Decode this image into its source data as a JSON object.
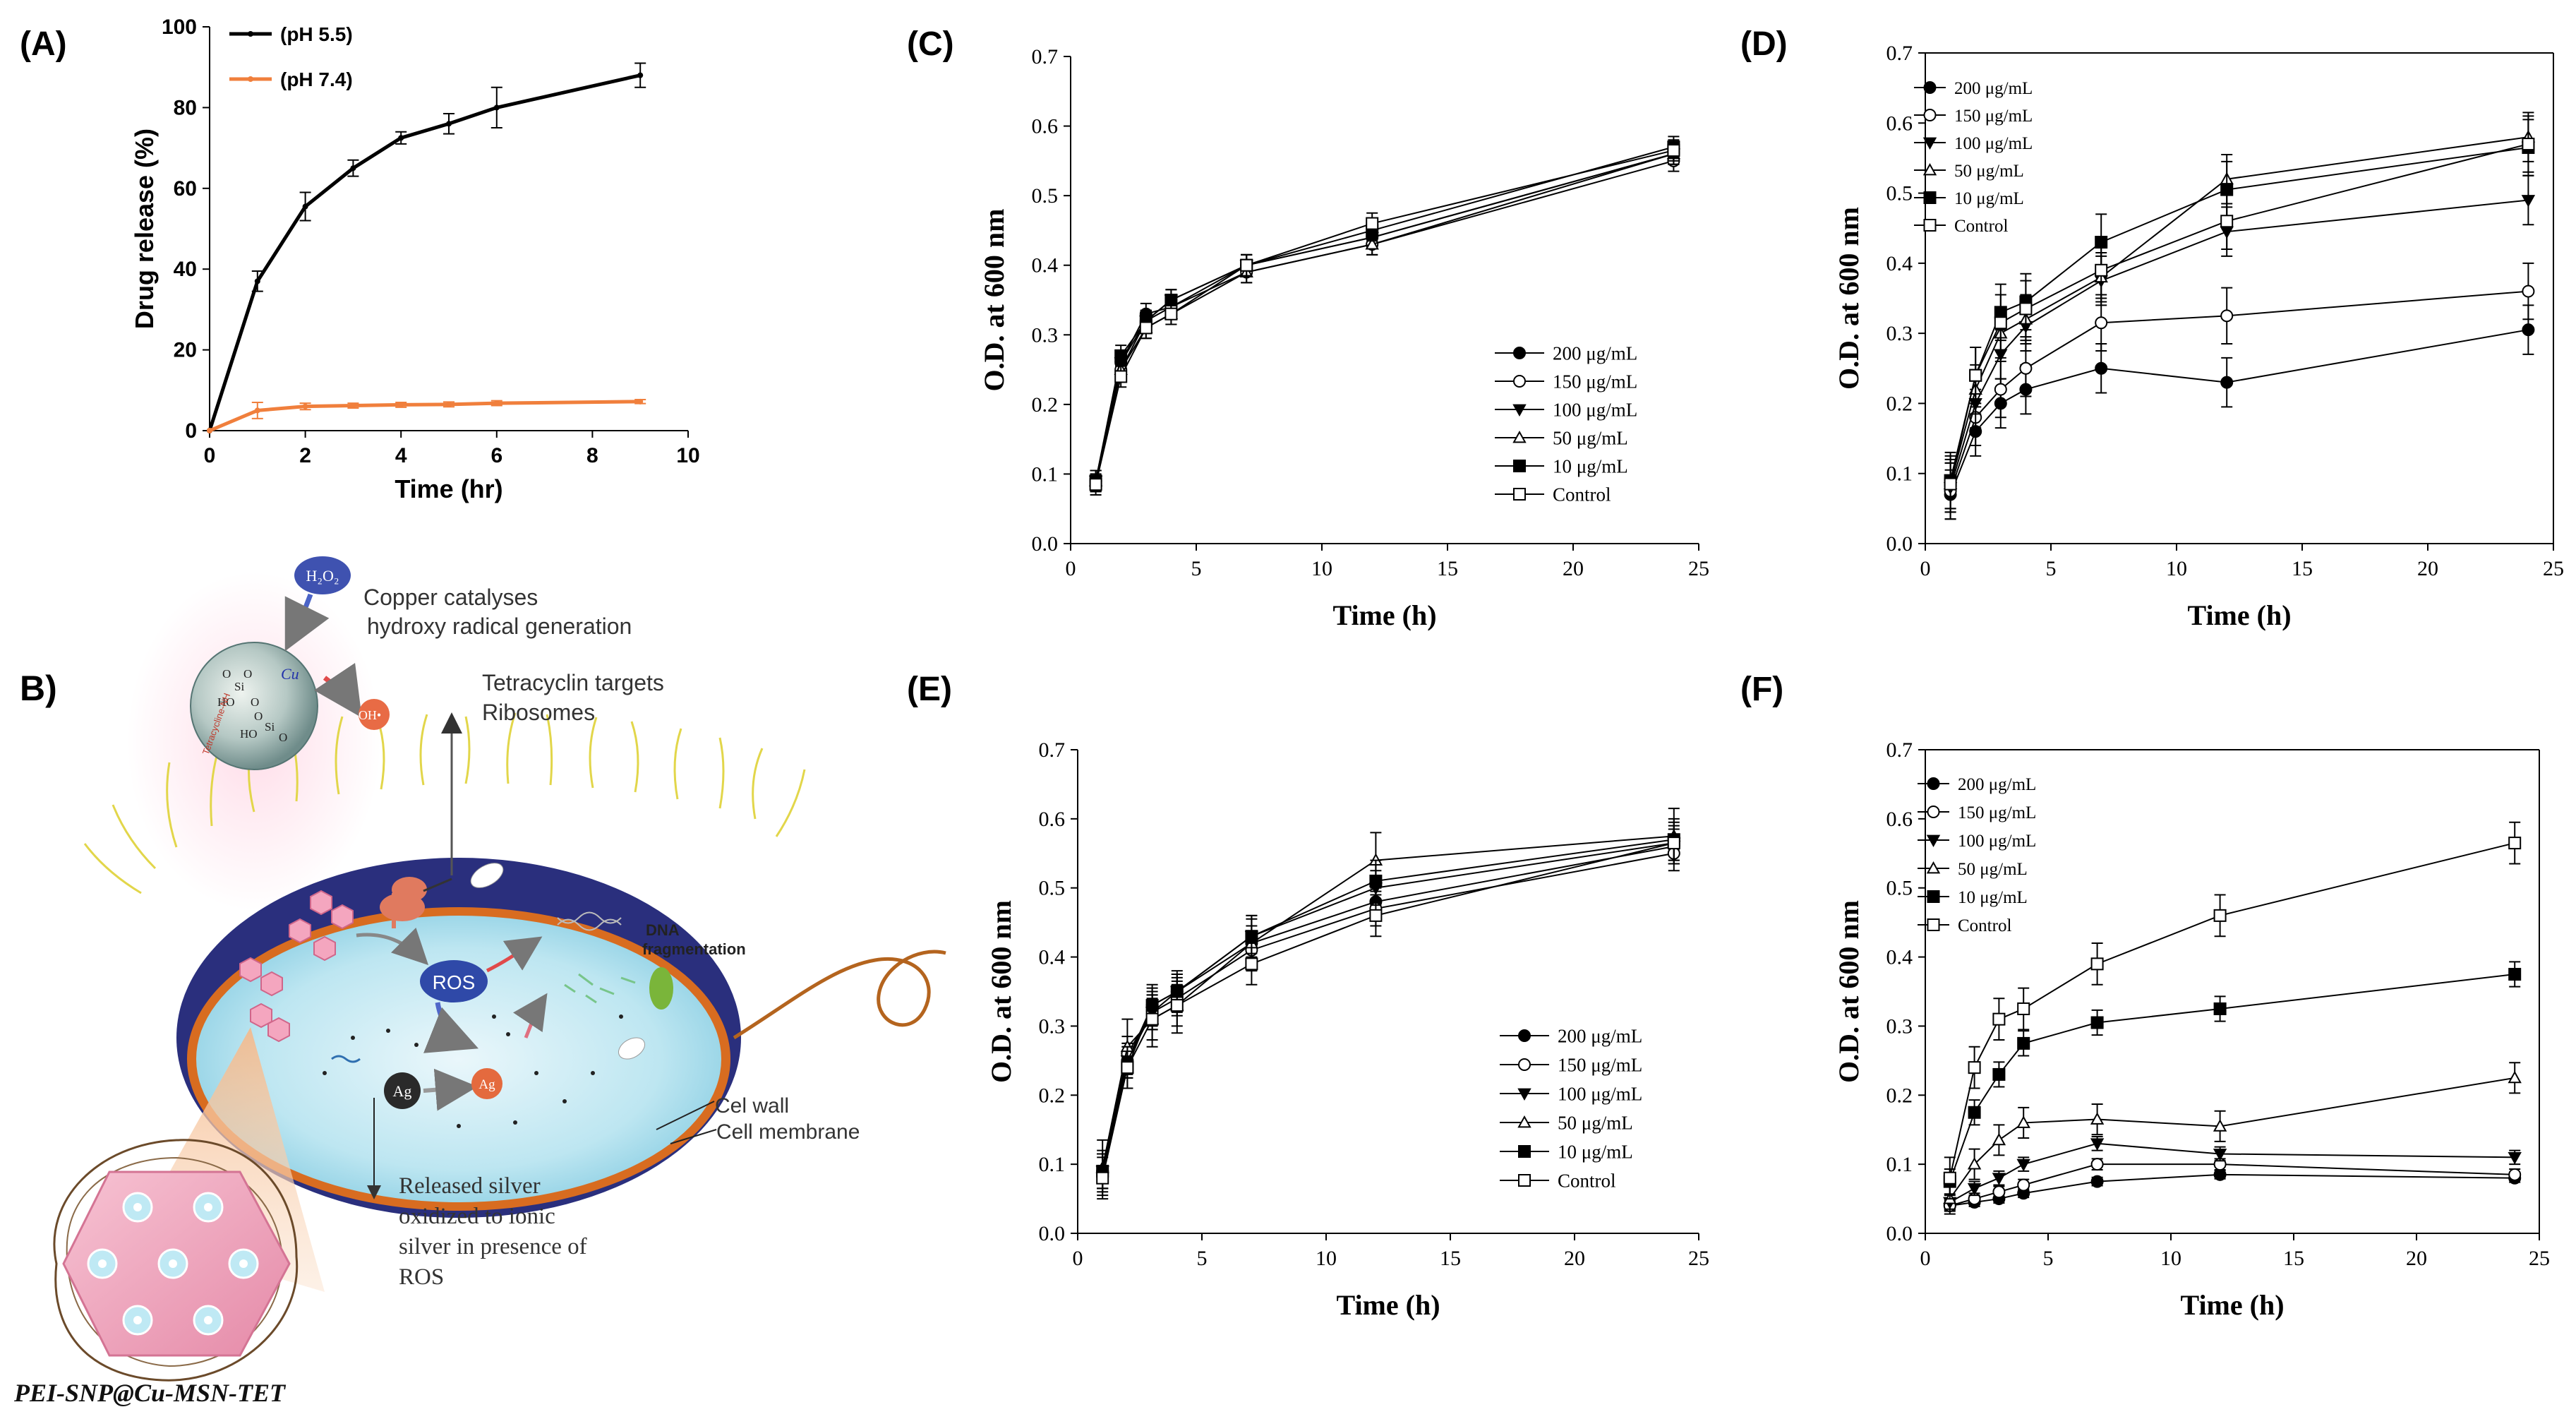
{
  "figure": {
    "footer_caption": "PEI-SNP@Cu-MSN-TET"
  },
  "panel_a": {
    "label": "(A)",
    "chart_data": {
      "type": "line",
      "title": "",
      "xlabel": "Time (hr)",
      "ylabel": "Drug release (%)",
      "xlim": [
        0,
        10
      ],
      "ylim": [
        0,
        100
      ],
      "xticks": [
        0,
        2,
        4,
        6,
        8,
        10
      ],
      "yticks": [
        0,
        20,
        40,
        60,
        80,
        100
      ],
      "series": [
        {
          "name": "(pH 5.5)",
          "color": "#000000",
          "x": [
            0,
            1,
            2,
            3,
            4,
            5,
            6,
            9
          ],
          "y": [
            0,
            37,
            55.5,
            65,
            72.5,
            76,
            80,
            88
          ],
          "err": [
            0,
            2.5,
            3.5,
            2,
            1.5,
            2.5,
            5,
            3
          ]
        },
        {
          "name": "(pH 7.4)",
          "color": "#f07f3c",
          "x": [
            0,
            1,
            2,
            3,
            4,
            5,
            6,
            9
          ],
          "y": [
            0,
            5,
            6,
            6.2,
            6.4,
            6.5,
            6.8,
            7.2
          ],
          "err": [
            0,
            2,
            0.8,
            0.6,
            0.6,
            0.6,
            0.6,
            0.5
          ]
        }
      ]
    }
  },
  "panel_b": {
    "label": "B)",
    "annotations": {
      "h2o2": "H₂O₂",
      "copper_line1": "Copper catalyses",
      "copper_line2": "hydroxy radical generation",
      "tetra_line1": "Tetracyclin targets",
      "tetra_line2": "Ribosomes",
      "oh": "OH•",
      "cu": "Cu",
      "ros": "ROS",
      "ag_dark": "Ag",
      "ag_light": "Ag",
      "dna_line1": "DNA",
      "dna_line2": "fragmentation",
      "cell_wall": "Cel wall",
      "cell_membrane": "Cell membrane",
      "released_line1": "Released silver",
      "released_line2": "oxidized to ionic",
      "released_line3": "silver in presence of",
      "released_line4": "ROS"
    }
  },
  "panel_c": {
    "label": "(C)",
    "chart_data": {
      "type": "line",
      "xlabel": "Time (h)",
      "ylabel": "O.D. at 600 nm",
      "xlim": [
        0,
        25
      ],
      "ylim": [
        0,
        0.7
      ],
      "xticks": [
        0,
        5,
        10,
        15,
        20,
        25
      ],
      "yticks": [
        0.0,
        0.1,
        0.2,
        0.3,
        0.4,
        0.5,
        0.6,
        0.7
      ],
      "x": [
        1,
        2,
        3,
        4,
        7,
        12,
        24
      ],
      "legend_position": "center-right",
      "series": [
        {
          "name": "200  μg/mL",
          "marker": "circle-filled",
          "y": [
            0.09,
            0.26,
            0.33,
            0.34,
            0.4,
            0.44,
            0.56
          ],
          "err": 0.015
        },
        {
          "name": "150  μg/mL",
          "marker": "circle-open",
          "y": [
            0.09,
            0.25,
            0.32,
            0.34,
            0.39,
            0.43,
            0.55
          ],
          "err": 0.015
        },
        {
          "name": "100  μg/mL",
          "marker": "triangle-down-filled",
          "y": [
            0.09,
            0.26,
            0.32,
            0.35,
            0.4,
            0.44,
            0.56
          ],
          "err": 0.015
        },
        {
          "name": "50  μg/mL",
          "marker": "triangle-up-open",
          "y": [
            0.09,
            0.25,
            0.31,
            0.33,
            0.39,
            0.43,
            0.56
          ],
          "err": 0.015
        },
        {
          "name": "10  μg/mL",
          "marker": "square-filled",
          "y": [
            0.09,
            0.27,
            0.32,
            0.35,
            0.4,
            0.45,
            0.57
          ],
          "err": 0.015
        },
        {
          "name": "Control",
          "marker": "square-open",
          "y": [
            0.085,
            0.24,
            0.31,
            0.33,
            0.4,
            0.46,
            0.565
          ],
          "err": 0.015
        }
      ]
    }
  },
  "panel_d": {
    "label": "(D)",
    "chart_data": {
      "type": "line",
      "xlabel": "Time (h)",
      "ylabel": "O.D. at 600 nm",
      "xlim": [
        0,
        25
      ],
      "ylim": [
        0,
        0.7
      ],
      "xticks": [
        0,
        5,
        10,
        15,
        20,
        25
      ],
      "yticks": [
        0.0,
        0.1,
        0.2,
        0.3,
        0.4,
        0.5,
        0.6,
        0.7
      ],
      "x": [
        1,
        2,
        3,
        4,
        7,
        12,
        24
      ],
      "legend_position": "top-left",
      "series": [
        {
          "name": "200 μg/mL",
          "marker": "circle-filled",
          "y": [
            0.07,
            0.16,
            0.2,
            0.22,
            0.25,
            0.23,
            0.305
          ],
          "err": 0.035
        },
        {
          "name": "150 μg/mL",
          "marker": "circle-open",
          "y": [
            0.075,
            0.18,
            0.22,
            0.25,
            0.315,
            0.325,
            0.36
          ],
          "err": 0.04
        },
        {
          "name": "100 μg/mL",
          "marker": "triangle-down-filled",
          "y": [
            0.08,
            0.2,
            0.27,
            0.31,
            0.375,
            0.445,
            0.49
          ],
          "err": 0.035
        },
        {
          "name": "50 μg/mL",
          "marker": "triangle-up-open",
          "y": [
            0.085,
            0.22,
            0.3,
            0.32,
            0.38,
            0.52,
            0.58
          ],
          "err": 0.035
        },
        {
          "name": "10 μg/mL",
          "marker": "square-filled",
          "y": [
            0.09,
            0.24,
            0.33,
            0.345,
            0.43,
            0.505,
            0.565
          ],
          "err": 0.04
        },
        {
          "name": "Control",
          "marker": "square-open",
          "y": [
            0.085,
            0.24,
            0.315,
            0.335,
            0.39,
            0.46,
            0.57
          ],
          "err": 0.04
        }
      ]
    }
  },
  "panel_e": {
    "label": "(E)",
    "chart_data": {
      "type": "line",
      "xlabel": "Time (h)",
      "ylabel": "O.D. at 600 nm",
      "xlim": [
        0,
        25
      ],
      "ylim": [
        0,
        0.7
      ],
      "xticks": [
        0,
        5,
        10,
        15,
        20,
        25
      ],
      "yticks": [
        0.0,
        0.1,
        0.2,
        0.3,
        0.4,
        0.5,
        0.6,
        0.7
      ],
      "x": [
        1,
        2,
        3,
        4,
        7,
        12,
        24
      ],
      "legend_position": "bottom-right",
      "series": [
        {
          "name": "200  μg/mL",
          "marker": "circle-filled",
          "y": [
            0.09,
            0.25,
            0.33,
            0.35,
            0.42,
            0.48,
            0.56
          ],
          "err": 0.025
        },
        {
          "name": "150  μg/mL",
          "marker": "circle-open",
          "y": [
            0.09,
            0.26,
            0.32,
            0.34,
            0.41,
            0.47,
            0.55
          ],
          "err": 0.025
        },
        {
          "name": "100  μg/mL",
          "marker": "triangle-down-filled",
          "y": [
            0.09,
            0.25,
            0.32,
            0.35,
            0.43,
            0.5,
            0.565
          ],
          "err": 0.025
        },
        {
          "name": "50  μg/mL",
          "marker": "triangle-up-open",
          "y": [
            0.095,
            0.27,
            0.31,
            0.33,
            0.42,
            0.54,
            0.575
          ],
          "err": 0.04
        },
        {
          "name": "10  μg/mL",
          "marker": "square-filled",
          "y": [
            0.09,
            0.24,
            0.33,
            0.35,
            0.43,
            0.51,
            0.57
          ],
          "err": 0.03
        },
        {
          "name": "Control",
          "marker": "square-open",
          "y": [
            0.08,
            0.24,
            0.31,
            0.33,
            0.39,
            0.46,
            0.565
          ],
          "err": 0.03
        }
      ]
    }
  },
  "panel_f": {
    "label": "(F)",
    "chart_data": {
      "type": "line",
      "xlabel": "Time (h)",
      "ylabel": "O.D. at 600 nm",
      "xlim": [
        0,
        25
      ],
      "ylim": [
        0,
        0.7
      ],
      "xticks": [
        0,
        5,
        10,
        15,
        20,
        25
      ],
      "yticks": [
        0.0,
        0.1,
        0.2,
        0.3,
        0.4,
        0.5,
        0.6,
        0.7
      ],
      "x": [
        1,
        2,
        3,
        4,
        7,
        12,
        24
      ],
      "legend_position": "top-left",
      "series": [
        {
          "name": "200 μg/mL",
          "marker": "circle-filled",
          "y": [
            0.04,
            0.045,
            0.05,
            0.058,
            0.075,
            0.085,
            0.08
          ],
          "err": 0.006
        },
        {
          "name": "150  μg/mL",
          "marker": "circle-open",
          "y": [
            0.04,
            0.05,
            0.06,
            0.07,
            0.1,
            0.1,
            0.085
          ],
          "err": 0.008
        },
        {
          "name": "100  μg/mL",
          "marker": "triangle-down-filled",
          "y": [
            0.045,
            0.065,
            0.08,
            0.1,
            0.13,
            0.115,
            0.11
          ],
          "err": 0.01
        },
        {
          "name": "50  μg/mL",
          "marker": "triangle-up-open",
          "y": [
            0.05,
            0.1,
            0.135,
            0.16,
            0.165,
            0.155,
            0.225
          ],
          "err": 0.022
        },
        {
          "name": "10  μg/mL",
          "marker": "square-filled",
          "y": [
            0.075,
            0.175,
            0.23,
            0.275,
            0.305,
            0.325,
            0.375
          ],
          "err": 0.018
        },
        {
          "name": "Control",
          "marker": "square-open",
          "y": [
            0.08,
            0.24,
            0.31,
            0.325,
            0.39,
            0.46,
            0.565
          ],
          "err": 0.03
        }
      ]
    }
  }
}
